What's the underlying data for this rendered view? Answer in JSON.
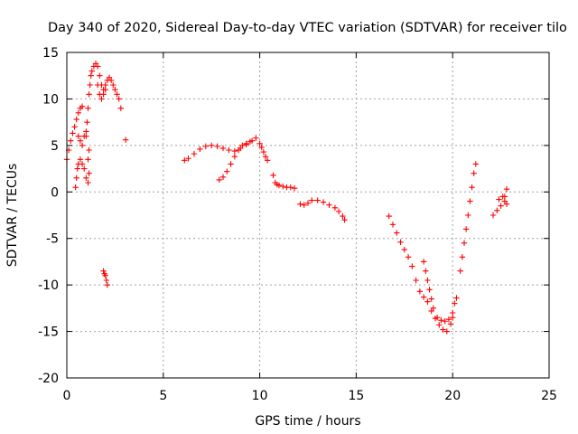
{
  "chart_data": {
    "type": "scatter",
    "title": "Day 340 of 2020, Sidereal Day-to-day VTEC variation (SDTVAR) for receiver tilo",
    "xlabel": "GPS time / hours",
    "ylabel": "SDTVAR / TECUs",
    "xlim": [
      0,
      25
    ],
    "ylim": [
      -20,
      15
    ],
    "x_ticks": [
      0,
      5,
      10,
      15,
      20,
      25
    ],
    "x_tick_labels": [
      "0",
      "5",
      "10",
      "15",
      "20",
      "25"
    ],
    "y_ticks": [
      -20,
      -15,
      -10,
      -5,
      0,
      5,
      10,
      15
    ],
    "y_tick_labels": [
      "-20",
      "-15",
      "-10",
      "-5",
      "0",
      "5",
      "10",
      "15"
    ],
    "grid": true,
    "marker": "plus",
    "color": "#ff0000",
    "segments": [
      {
        "x": [
          0.0,
          0.1,
          0.2,
          0.3,
          0.4,
          0.5,
          0.6,
          0.7,
          0.8
        ],
        "y": [
          3.5,
          4.5,
          5.5,
          6.3,
          7.0,
          7.8,
          8.5,
          9.0,
          9.2
        ]
      },
      {
        "x": [
          0.45,
          0.5,
          0.55,
          0.6,
          0.7,
          0.8,
          0.9,
          1.0,
          1.1,
          1.15
        ],
        "y": [
          0.5,
          1.5,
          2.5,
          3.0,
          3.5,
          3.0,
          2.5,
          1.5,
          3.5,
          4.5
        ]
      },
      {
        "x": [
          0.6,
          0.7,
          0.8,
          0.9,
          1.0
        ],
        "y": [
          6.0,
          5.5,
          5.0,
          6.0,
          6.5
        ]
      },
      {
        "x": [
          1.1,
          1.15
        ],
        "y": [
          1.0,
          2.0
        ]
      },
      {
        "x": [
          1.0,
          1.05,
          1.1,
          1.15,
          1.2,
          1.25,
          1.3,
          1.4,
          1.5,
          1.6,
          1.7,
          1.8,
          1.9,
          2.0,
          2.1,
          2.2,
          2.3,
          2.4,
          2.5,
          2.6,
          2.7,
          2.8
        ],
        "y": [
          6.0,
          7.5,
          9.0,
          10.5,
          11.5,
          12.5,
          13.0,
          13.5,
          13.8,
          13.5,
          12.5,
          11.5,
          11.0,
          11.5,
          12.0,
          12.3,
          12.0,
          11.5,
          11.0,
          10.5,
          10.0,
          9.0
        ]
      },
      {
        "x": [
          1.6,
          1.7,
          1.8,
          1.9,
          2.0
        ],
        "y": [
          11.5,
          10.5,
          10.0,
          10.5,
          11.0
        ]
      },
      {
        "x": [
          1.9,
          1.95,
          2.0,
          2.05,
          2.1
        ],
        "y": [
          -8.5,
          -8.8,
          -9.0,
          -9.5,
          -10.0
        ]
      },
      {
        "x": [
          3.05
        ],
        "y": [
          5.6
        ]
      },
      {
        "x": [
          6.1,
          6.3,
          6.6,
          6.9,
          7.2,
          7.5,
          7.8,
          8.1,
          8.4,
          8.7,
          9.0,
          9.3,
          9.6,
          9.8
        ],
        "y": [
          3.4,
          3.6,
          4.1,
          4.6,
          4.9,
          5.0,
          4.9,
          4.7,
          4.5,
          4.4,
          4.7,
          5.1,
          5.5,
          5.8
        ]
      },
      {
        "x": [
          7.9,
          8.1,
          8.3,
          8.5,
          8.7,
          8.9,
          9.1,
          9.3,
          9.5
        ],
        "y": [
          1.3,
          1.6,
          2.2,
          3.0,
          3.8,
          4.5,
          5.0,
          5.2,
          5.4
        ]
      },
      {
        "x": [
          10.0,
          10.1,
          10.2,
          10.3,
          10.4
        ],
        "y": [
          5.2,
          4.8,
          4.3,
          3.8,
          3.4
        ]
      },
      {
        "x": [
          10.7,
          10.8,
          10.9,
          11.0,
          11.2,
          11.4,
          11.6,
          11.8
        ],
        "y": [
          1.8,
          1.0,
          0.8,
          0.7,
          0.6,
          0.5,
          0.5,
          0.4
        ]
      },
      {
        "x": [
          12.1,
          12.3,
          12.5,
          12.7,
          13.0,
          13.3,
          13.6,
          13.9,
          14.1,
          14.3,
          14.4
        ],
        "y": [
          -1.3,
          -1.4,
          -1.2,
          -0.9,
          -0.9,
          -1.1,
          -1.4,
          -1.7,
          -2.1,
          -2.6,
          -3.0
        ]
      },
      {
        "x": [
          16.7,
          16.9,
          17.1,
          17.3,
          17.5,
          17.7,
          17.9,
          18.1,
          18.3,
          18.5,
          18.7,
          18.9,
          19.1,
          19.3,
          19.5,
          19.7,
          19.9,
          20.0
        ],
        "y": [
          -2.6,
          -3.5,
          -4.4,
          -5.4,
          -6.2,
          -7.0,
          -8.0,
          -9.5,
          -10.7,
          -11.3,
          -11.8,
          -12.8,
          -13.6,
          -14.3,
          -14.8,
          -15.0,
          -14.2,
          -13.5
        ]
      },
      {
        "x": [
          18.5,
          18.6,
          18.7,
          18.8,
          18.9,
          19.0,
          19.2,
          19.4,
          19.6,
          19.8,
          20.0,
          20.1,
          20.2
        ],
        "y": [
          -7.5,
          -8.5,
          -9.5,
          -10.5,
          -11.5,
          -12.5,
          -13.5,
          -13.8,
          -13.9,
          -13.7,
          -13.0,
          -12.0,
          -11.4
        ]
      },
      {
        "x": [
          20.4,
          20.5,
          20.6,
          20.7,
          20.8,
          20.9,
          21.0,
          21.1,
          21.2
        ],
        "y": [
          -8.5,
          -7.0,
          -5.5,
          -4.0,
          -2.5,
          -1.0,
          0.5,
          2.0,
          3.0
        ]
      },
      {
        "x": [
          22.1,
          22.3,
          22.5,
          22.7,
          22.8
        ],
        "y": [
          -2.5,
          -2.0,
          -1.5,
          -0.5,
          0.3
        ]
      },
      {
        "x": [
          22.4,
          22.6,
          22.7,
          22.8
        ],
        "y": [
          -0.8,
          -0.5,
          -1.0,
          -1.3
        ]
      }
    ]
  }
}
